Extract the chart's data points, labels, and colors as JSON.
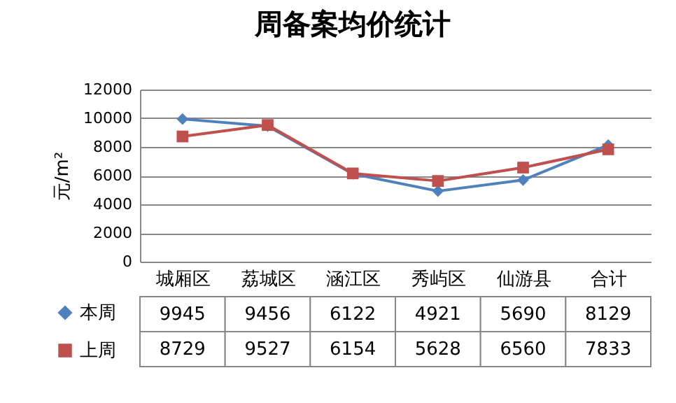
{
  "chart_data": {
    "type": "line",
    "title": "周备案均价统计",
    "ylabel": "元/m²",
    "categories": [
      "城厢区",
      "荔城区",
      "涵江区",
      "秀屿区",
      "仙游县",
      "合计"
    ],
    "series": [
      {
        "name": "本周",
        "color": "#4f81bd",
        "marker": "diamond",
        "values": [
          9945,
          9456,
          6122,
          4921,
          5690,
          8129
        ]
      },
      {
        "name": "上周",
        "color": "#c0504d",
        "marker": "square",
        "values": [
          8729,
          9527,
          6154,
          5628,
          6560,
          7833
        ]
      }
    ],
    "ylim": [
      0,
      12000
    ],
    "yticks": [
      0,
      2000,
      4000,
      6000,
      8000,
      10000,
      12000
    ],
    "grid": "y",
    "legend": "bottom left",
    "data_labels": true
  }
}
